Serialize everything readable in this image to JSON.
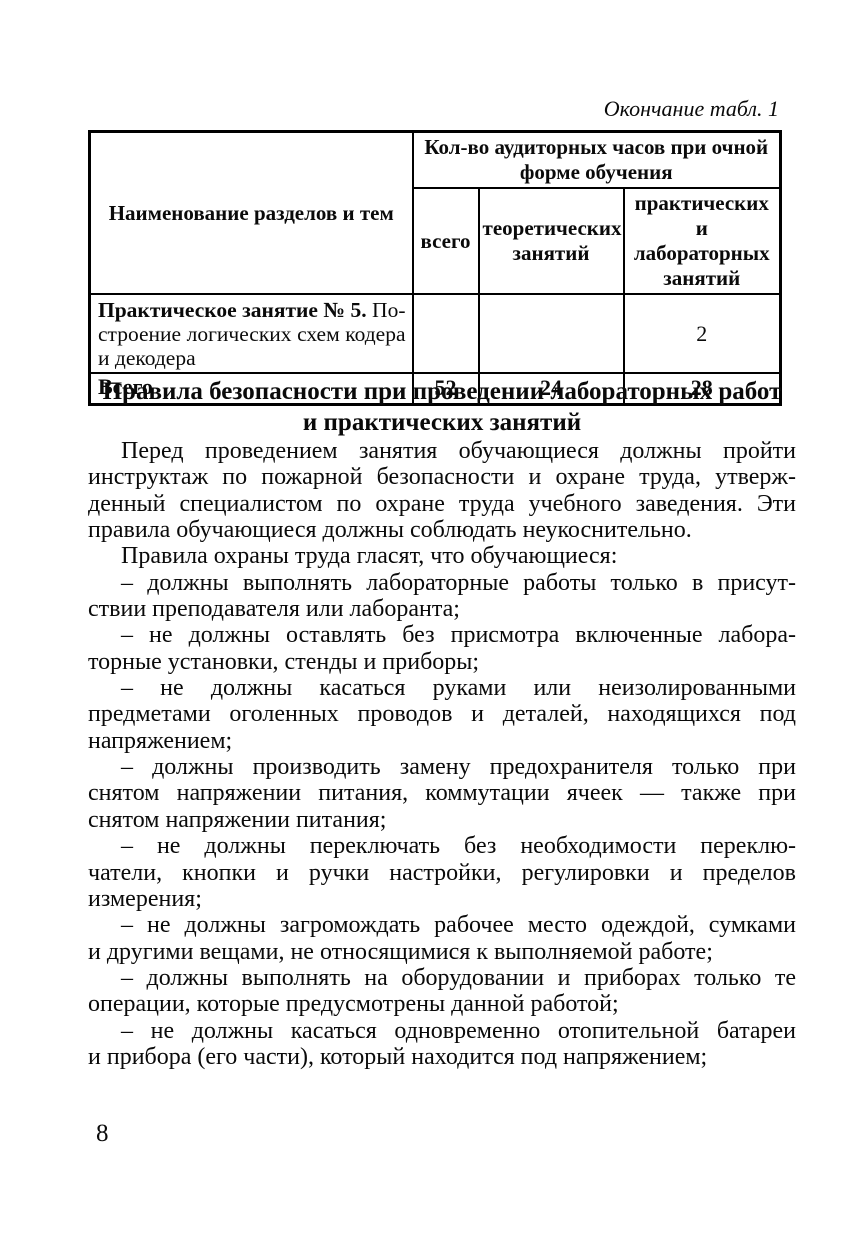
{
  "caption": "Окончание табл. 1",
  "table": {
    "name_header": "Наименование разделов и тем",
    "group_header_lines": [
      "Кол-во аудиторных часов при очной",
      "форме обучения"
    ],
    "sub_headers": [
      {
        "lines": [
          "всего"
        ]
      },
      {
        "lines": [
          "теоретических",
          "занятий"
        ]
      },
      {
        "lines": [
          "практических",
          "и лабораторных",
          "занятий"
        ]
      }
    ],
    "rows": [
      {
        "name_lines": [
          {
            "bold": "Практическое занятие № 5.",
            "text": " По-"
          },
          {
            "text": "строение логических схем кодера"
          },
          {
            "text": "и декодера"
          }
        ],
        "values": [
          "",
          "",
          "2"
        ]
      }
    ],
    "total_row": {
      "label": "Всего",
      "values": [
        "52",
        "24",
        "28"
      ]
    }
  },
  "section": {
    "heading_lines": [
      "Правила безопасности при проведении лабораторных работ",
      "и практических занятий"
    ]
  },
  "body": {
    "paragraphs": [
      {
        "lines": [
          "Перед проведением занятия обучающиеся должны пройти",
          "инструктаж по пожарной безопасности и охране труда, утверж-",
          "денный специалистом по охране труда учебного заведения. Эти",
          "правила обучающиеся должны соблюдать неукоснительно."
        ]
      },
      {
        "lines": [
          "Правила охраны труда гласят, что обучающиеся:"
        ]
      },
      {
        "lines": [
          "– должны выполнять лабораторные работы только в присут-",
          "ствии преподавателя или лаборанта;"
        ]
      },
      {
        "lines": [
          "– не должны оставлять без присмотра включенные лабора-",
          "торные установки, стенды и приборы;"
        ]
      },
      {
        "lines": [
          "– не должны касаться руками или неизолированными",
          "предметами оголенных проводов и деталей, находящихся под",
          "напряжением;"
        ]
      },
      {
        "lines": [
          "– должны производить замену предохранителя только при",
          "снятом напряжении питания, коммутации ячеек — также при",
          "снятом напряжении питания;"
        ]
      },
      {
        "lines": [
          "– не должны переключать без необходимости переклю-",
          "чатели, кнопки и ручки настройки, регулировки и пределов",
          "измерения;"
        ]
      },
      {
        "lines": [
          "– не должны загромождать рабочее место одеждой, сумками",
          "и другими вещами, не относящимися к выполняемой работе;"
        ]
      },
      {
        "lines": [
          "– должны выполнять на оборудовании и приборах только те",
          "операции, которые предусмотрены данной работой;"
        ]
      },
      {
        "lines": [
          "– не должны касаться одновременно отопительной батареи",
          "и прибора (его части), который находится под напряжением;"
        ]
      }
    ]
  },
  "page_number": "8"
}
